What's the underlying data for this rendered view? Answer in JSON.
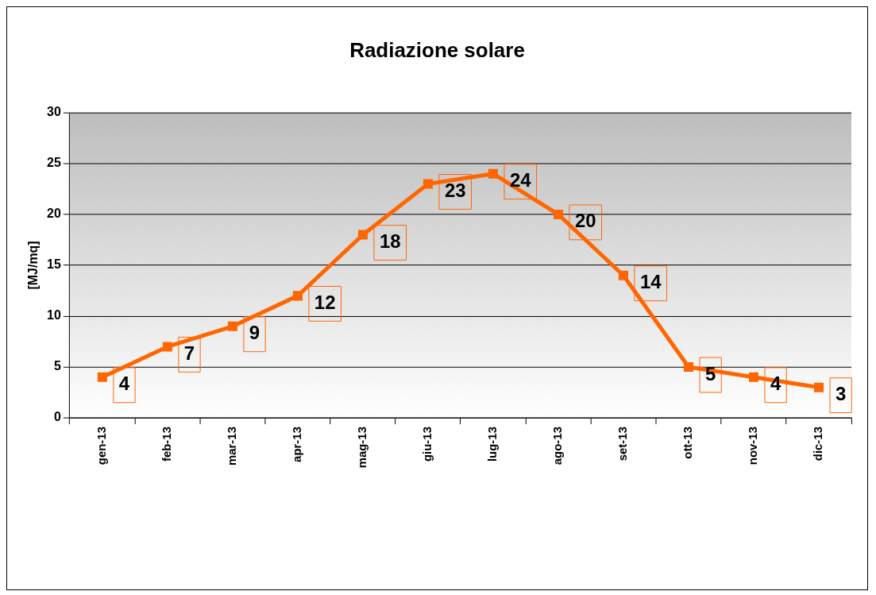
{
  "chart_data": {
    "type": "line",
    "title": "Radiazione solare",
    "ylabel": "[MJ/mq]",
    "categories": [
      "gen-13",
      "feb-13",
      "mar-13",
      "apr-13",
      "mag-13",
      "giu-13",
      "lug-13",
      "ago-13",
      "set-13",
      "ott-13",
      "nov-13",
      "dic-13"
    ],
    "series": [
      {
        "color": "#ff6600",
        "values": [
          4,
          7,
          9,
          12,
          18,
          23,
          24,
          20,
          14,
          5,
          4,
          3
        ]
      }
    ],
    "ylim": [
      0,
      30
    ],
    "yticks": [
      0,
      5,
      10,
      15,
      20,
      25,
      30
    ],
    "grid": "y",
    "legend": false,
    "marker": "square",
    "line_style": "solid",
    "data_labels": true
  }
}
